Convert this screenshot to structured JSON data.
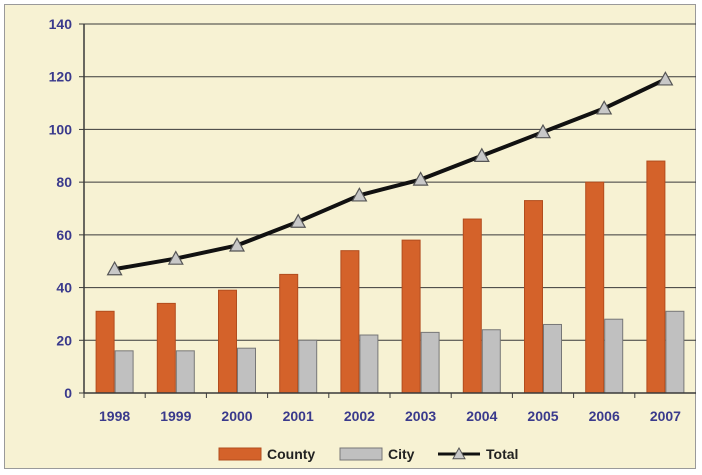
{
  "chart_data": {
    "type": "bar",
    "categories": [
      "1998",
      "1999",
      "2000",
      "2001",
      "2002",
      "2003",
      "2004",
      "2005",
      "2006",
      "2007"
    ],
    "series": [
      {
        "name": "County",
        "type": "bar",
        "color": "#d4622a",
        "values": [
          31,
          34,
          39,
          45,
          54,
          58,
          66,
          73,
          80,
          88
        ]
      },
      {
        "name": "City",
        "type": "bar",
        "color": "#c0c0c0",
        "values": [
          16,
          16,
          17,
          20,
          22,
          23,
          24,
          26,
          28,
          31
        ]
      },
      {
        "name": "Total",
        "type": "line",
        "color": "#111111",
        "marker": "triangle",
        "values": [
          47,
          51,
          56,
          65,
          75,
          81,
          90,
          99,
          108,
          119
        ]
      }
    ],
    "ylim": [
      0,
      140
    ],
    "yticks": [
      "0",
      "20",
      "40",
      "60",
      "80",
      "100",
      "120",
      "140"
    ],
    "xlabel": "",
    "ylabel": "",
    "title": "",
    "grid": true,
    "legend_position": "bottom"
  }
}
